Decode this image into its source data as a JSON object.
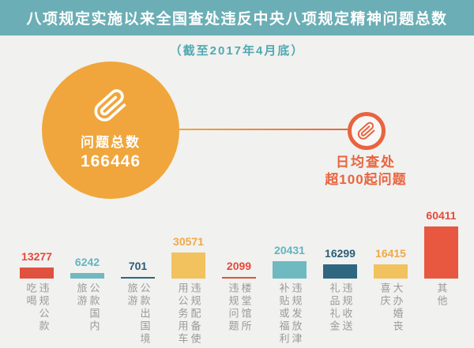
{
  "page": {
    "background": "#F1F1EF"
  },
  "header": {
    "title": "八项规定实施以来全国查处违反中央八项规定精神问题总数",
    "bg_color": "#6BAEB5",
    "text_color": "#FFFFFF"
  },
  "subtitle": {
    "text": "（截至2017年4月底）",
    "color": "#4FA9B1"
  },
  "total_bubble": {
    "icon": "paperclip-icon",
    "label": "问题总数",
    "value": "166446",
    "bg_color": "#F0A63C",
    "text_color": "#FFFFFF"
  },
  "daily_bubble": {
    "icon": "paperclip-icon",
    "line1": "日均查处",
    "line2": "超100起问题",
    "accent_color": "#E8643F"
  },
  "chart_data": {
    "type": "bar",
    "title": "八项规定实施以来全国查处违反中央八项规定精神问题总数",
    "subtitle": "（截至2017年4月底）",
    "total_label": "问题总数",
    "total_value": 166446,
    "annotation": "日均查处超100起问题",
    "categories": [
      "违规公款吃喝",
      "公款国内旅游",
      "公款出国境旅游",
      "违规配备使用公务用车",
      "楼堂馆所违规问题",
      "违规发放津补贴或福利",
      "违规收送礼品礼金",
      "大办婚丧喜庆",
      "其他"
    ],
    "values": [
      13277,
      6242,
      701,
      30571,
      2099,
      20431,
      16299,
      16415,
      60411
    ],
    "ylim": [
      0,
      60411
    ],
    "grid": false,
    "legend": "none",
    "label_color": "#9A9A9A",
    "bars": [
      {
        "value": "13277",
        "label_lines": [
          "违规公款",
          "吃喝"
        ],
        "bar_color": "#E0513F",
        "value_color": "#E5493B"
      },
      {
        "value": "6242",
        "label_lines": [
          "公款国内",
          "旅游"
        ],
        "bar_color": "#6FB9C1",
        "value_color": "#5FB6C1"
      },
      {
        "value": "701",
        "label_lines": [
          "公款出国境",
          "旅游"
        ],
        "bar_color": "#2F6680",
        "value_color": "#2A5E78"
      },
      {
        "value": "30571",
        "label_lines": [
          "违规配备使",
          "用公务用车"
        ],
        "bar_color": "#F2C25F",
        "value_color": "#F0A945"
      },
      {
        "value": "2099",
        "label_lines": [
          "楼堂馆所",
          "违规问题"
        ],
        "bar_color": "#E0513F",
        "value_color": "#E5493B"
      },
      {
        "value": "20431",
        "label_lines": [
          "违规发放津",
          "补贴或福利"
        ],
        "bar_color": "#6FB9C1",
        "value_color": "#5FB6C1"
      },
      {
        "value": "16299",
        "label_lines": [
          "违规收送",
          "礼品礼金"
        ],
        "bar_color": "#2F6680",
        "value_color": "#2A5E78"
      },
      {
        "value": "16415",
        "label_lines": [
          "大办婚丧",
          "喜庆"
        ],
        "bar_color": "#F2C25F",
        "value_color": "#F0A945"
      },
      {
        "value": "60411",
        "label_lines": [
          "其他"
        ],
        "bar_color": "#E8573F",
        "value_color": "#E5493B"
      }
    ]
  }
}
